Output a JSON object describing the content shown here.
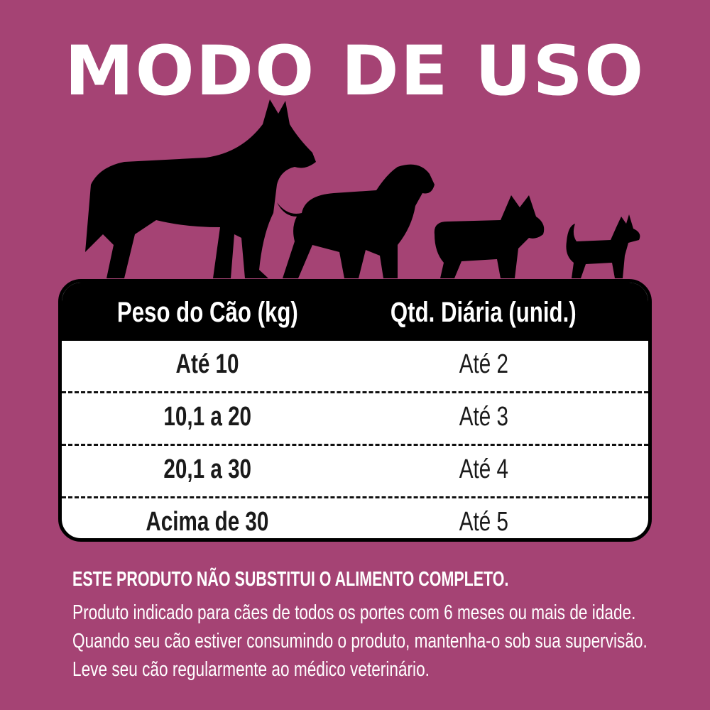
{
  "title": "MODO DE USO",
  "colors": {
    "background": "#A54374",
    "header": "#000000",
    "table_body": "#FFFFFF",
    "text_light": "#FFFFFF"
  },
  "illustration": "four-dog-silhouettes-large-to-small",
  "table": {
    "headers": [
      "Peso do Cão (kg)",
      "Qtd. Diária (unid.)"
    ],
    "rows": [
      [
        "Até 10",
        "Até 2"
      ],
      [
        "10,1 a 20",
        "Até 3"
      ],
      [
        "20,1 a 30",
        "Até 4"
      ],
      [
        "Acima de 30",
        "Até 5"
      ]
    ]
  },
  "notice": {
    "heading": "ESTE PRODUTO NÃO SUBSTITUI O ALIMENTO COMPLETO.",
    "body": "Produto indicado para cães de todos os portes com 6 meses ou mais de idade. Quando seu cão estiver consumindo o produto, mantenha-o sob sua supervisão. Leve seu cão regularmente ao médico veterinário."
  }
}
